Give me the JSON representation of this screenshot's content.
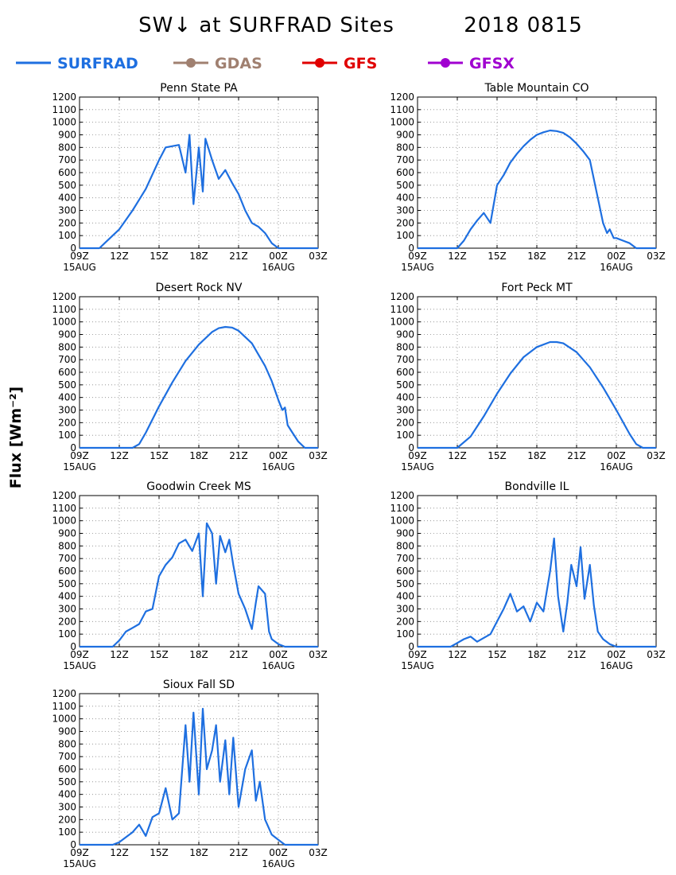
{
  "chart_data": {
    "title": "SW↓ at SURFRAD Sites",
    "date": "2018 0815",
    "ylabel": "Flux [Wm⁻²]",
    "type": "line",
    "ylim": [
      0,
      1200
    ],
    "yticks": [
      0,
      100,
      200,
      300,
      400,
      500,
      600,
      700,
      800,
      900,
      1000,
      1100,
      1200
    ],
    "xlim_hours": [
      9,
      27
    ],
    "xticks": [
      {
        "h": 9,
        "label": "09Z",
        "sub": "15AUG"
      },
      {
        "h": 12,
        "label": "12Z",
        "sub": ""
      },
      {
        "h": 15,
        "label": "15Z",
        "sub": ""
      },
      {
        "h": 18,
        "label": "18Z",
        "sub": ""
      },
      {
        "h": 21,
        "label": "21Z",
        "sub": ""
      },
      {
        "h": 24,
        "label": "00Z",
        "sub": "16AUG"
      },
      {
        "h": 27,
        "label": "03Z",
        "sub": ""
      }
    ],
    "grid": true,
    "legend": [
      {
        "name": "SURFRAD",
        "color": "#1e6fe0",
        "marker": false
      },
      {
        "name": "GDAS",
        "color": "#a08070",
        "marker": true
      },
      {
        "name": "GFS",
        "color": "#e00000",
        "marker": true
      },
      {
        "name": "GFSX",
        "color": "#a000d0",
        "marker": true
      }
    ],
    "panels": [
      {
        "title": "Penn State PA",
        "series": [
          {
            "name": "SURFRAD",
            "x": [
              9,
              10.5,
              11,
              12,
              13,
              14,
              15,
              15.5,
              16.5,
              17,
              17.3,
              17.6,
              18,
              18.3,
              18.5,
              19,
              19.5,
              20,
              20.5,
              21,
              21.5,
              22,
              22.5,
              23,
              23.5,
              24,
              25,
              27
            ],
            "y": [
              0,
              0,
              50,
              150,
              300,
              470,
              700,
              800,
              820,
              600,
              900,
              350,
              800,
              450,
              870,
              700,
              550,
              620,
              520,
              430,
              300,
              200,
              170,
              120,
              40,
              0,
              0,
              0
            ]
          }
        ]
      },
      {
        "title": "Table Mountain CO",
        "series": [
          {
            "name": "SURFRAD",
            "x": [
              9,
              12,
              12.5,
              13,
              13.5,
              14,
              14.5,
              15,
              15.5,
              16,
              16.5,
              17,
              17.5,
              18,
              18.5,
              19,
              19.5,
              20,
              20.5,
              21,
              21.5,
              22,
              22.2,
              22.5,
              22.8,
              23,
              23.3,
              23.5,
              23.8,
              24,
              24.5,
              25,
              25.5,
              27
            ],
            "y": [
              0,
              0,
              60,
              150,
              220,
              280,
              200,
              500,
              580,
              680,
              750,
              810,
              860,
              900,
              920,
              935,
              930,
              915,
              880,
              830,
              770,
              700,
              600,
              450,
              300,
              200,
              120,
              150,
              80,
              80,
              60,
              40,
              0,
              0
            ]
          }
        ]
      },
      {
        "title": "Desert Rock NV",
        "series": [
          {
            "name": "SURFRAD",
            "x": [
              9,
              13,
              13.5,
              14,
              15,
              16,
              17,
              18,
              19,
              19.5,
              20,
              20.5,
              21,
              22,
              23,
              23.5,
              24,
              24.3,
              24.5,
              24.7,
              25,
              25.5,
              26,
              26.5,
              27
            ],
            "y": [
              0,
              0,
              30,
              120,
              330,
              520,
              690,
              820,
              920,
              950,
              960,
              955,
              930,
              830,
              650,
              530,
              380,
              300,
              320,
              180,
              130,
              50,
              0,
              0,
              0
            ]
          }
        ]
      },
      {
        "title": "Fort Peck MT",
        "series": [
          {
            "name": "SURFRAD",
            "x": [
              9,
              12,
              13,
              14,
              15,
              16,
              17,
              18,
              19,
              19.5,
              20,
              21,
              22,
              23,
              24,
              25,
              25.5,
              26,
              27
            ],
            "y": [
              0,
              0,
              90,
              250,
              430,
              590,
              720,
              800,
              840,
              840,
              830,
              760,
              640,
              480,
              300,
              110,
              30,
              0,
              0
            ]
          }
        ]
      },
      {
        "title": "Goodwin Creek MS",
        "series": [
          {
            "name": "SURFRAD",
            "x": [
              9,
              11.5,
              12,
              12.5,
              13,
              13.5,
              14,
              14.5,
              15,
              15.5,
              16,
              16.5,
              17,
              17.5,
              18,
              18.3,
              18.6,
              19,
              19.3,
              19.6,
              20,
              20.3,
              20.6,
              21,
              21.5,
              22,
              22.3,
              22.5,
              23,
              23.3,
              23.5,
              24,
              24.5,
              25,
              27
            ],
            "y": [
              0,
              0,
              50,
              120,
              150,
              180,
              280,
              300,
              560,
              650,
              710,
              820,
              850,
              760,
              900,
              400,
              980,
              900,
              500,
              880,
              750,
              850,
              650,
              420,
              300,
              140,
              350,
              480,
              420,
              120,
              60,
              20,
              0,
              0,
              0
            ]
          }
        ]
      },
      {
        "title": "Bondville IL",
        "series": [
          {
            "name": "SURFRAD",
            "x": [
              9,
              11.5,
              12,
              12.5,
              13,
              13.5,
              14,
              14.5,
              15,
              15.5,
              16,
              16.5,
              17,
              17.5,
              18,
              18.5,
              19,
              19.3,
              19.6,
              20,
              20.3,
              20.6,
              21,
              21.3,
              21.6,
              22,
              22.3,
              22.6,
              23,
              23.5,
              24,
              24.5,
              27
            ],
            "y": [
              0,
              0,
              30,
              60,
              80,
              40,
              70,
              100,
              200,
              300,
              420,
              280,
              320,
              200,
              350,
              280,
              600,
              860,
              400,
              120,
              350,
              650,
              480,
              790,
              380,
              650,
              330,
              120,
              60,
              20,
              0,
              0,
              0
            ]
          }
        ]
      },
      {
        "title": "Sioux Fall SD",
        "series": [
          {
            "name": "SURFRAD",
            "x": [
              9,
              11.5,
              12,
              12.5,
              13,
              13.5,
              14,
              14.5,
              15,
              15.5,
              16,
              16.5,
              17,
              17.3,
              17.6,
              18,
              18.3,
              18.6,
              19,
              19.3,
              19.6,
              20,
              20.3,
              20.6,
              21,
              21.5,
              22,
              22.3,
              22.6,
              23,
              23.5,
              24,
              24.5,
              25,
              27
            ],
            "y": [
              0,
              0,
              20,
              60,
              100,
              160,
              70,
              220,
              250,
              450,
              200,
              250,
              950,
              500,
              1050,
              400,
              1080,
              600,
              750,
              950,
              500,
              830,
              400,
              850,
              300,
              600,
              750,
              350,
              500,
              200,
              80,
              40,
              0,
              0,
              0
            ]
          }
        ]
      }
    ]
  }
}
